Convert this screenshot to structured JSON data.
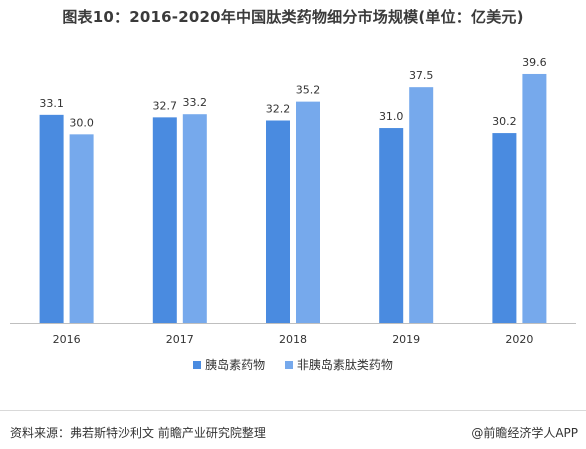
{
  "chart_data": {
    "type": "bar",
    "title": "图表10：2016-2020年中国肽类药物细分市场规模(单位：亿美元)",
    "categories": [
      "2016",
      "2017",
      "2018",
      "2019",
      "2020"
    ],
    "series": [
      {
        "name": "胰岛素药物",
        "values": [
          33.1,
          32.7,
          32.2,
          31.0,
          30.2
        ],
        "color": "#4a8be0"
      },
      {
        "name": "非胰岛素肽类药物",
        "values": [
          30.0,
          33.2,
          35.2,
          37.5,
          39.6
        ],
        "color": "#76a9ec"
      }
    ],
    "ylim": [
      0,
      45
    ],
    "grid": false,
    "legend_position": "bottom",
    "data_labels": true
  },
  "footer": {
    "source": "资料来源：弗若斯特沙利文 前瞻产业研究院整理",
    "credit": "@前瞻经济学人APP"
  }
}
